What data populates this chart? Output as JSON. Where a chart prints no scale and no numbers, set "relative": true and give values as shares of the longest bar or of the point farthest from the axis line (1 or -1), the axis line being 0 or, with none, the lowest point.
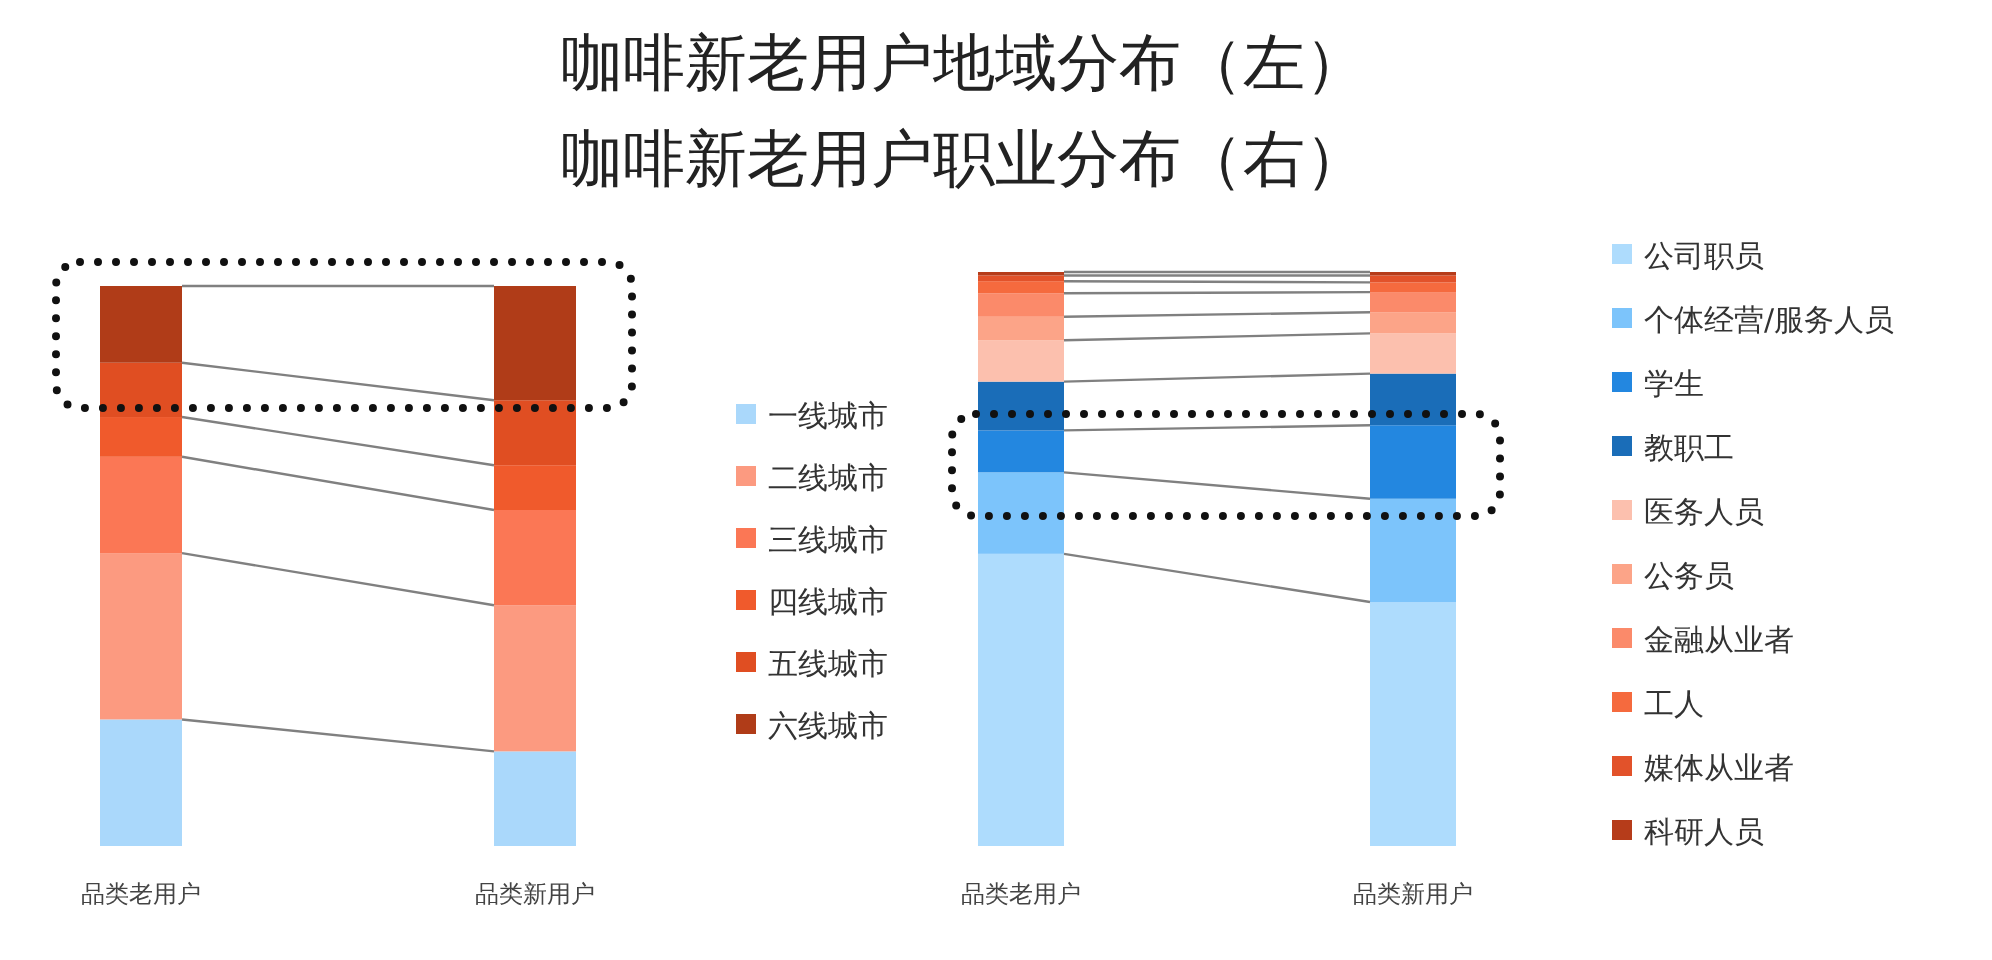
{
  "chart_data": [
    {
      "type": "bar",
      "title": "咖啡新老用户地域分布（左）",
      "categories": [
        "品类老用户",
        "品类新用户"
      ],
      "stacked": true,
      "relative": true,
      "legend": "right",
      "series": [
        {
          "name": "一线城市",
          "color": "#aad8fb",
          "values": [
            0.226,
            0.169
          ]
        },
        {
          "name": "二线城市",
          "color": "#fc9a80",
          "values": [
            0.297,
            0.261
          ]
        },
        {
          "name": "三线城市",
          "color": "#fb7755",
          "values": [
            0.172,
            0.17
          ]
        },
        {
          "name": "四线城市",
          "color": "#f05a2c",
          "values": [
            0.071,
            0.08
          ]
        },
        {
          "name": "五线城市",
          "color": "#e04e22",
          "values": [
            0.097,
            0.116
          ]
        },
        {
          "name": "六线城市",
          "color": "#b03c18",
          "values": [
            0.137,
            0.204
          ]
        }
      ]
    },
    {
      "type": "bar",
      "title": "咖啡新老用户职业分布（右）",
      "categories": [
        "品类老用户",
        "品类新用户"
      ],
      "stacked": true,
      "relative": true,
      "legend": "right",
      "series": [
        {
          "name": "公司职员",
          "color": "#aedcfd",
          "values": [
            0.509,
            0.425
          ]
        },
        {
          "name": "个体经营/服务人员",
          "color": "#7cc4fb",
          "values": [
            0.142,
            0.18
          ]
        },
        {
          "name": "学生",
          "color": "#2387e0",
          "values": [
            0.073,
            0.128
          ]
        },
        {
          "name": "教职工",
          "color": "#1a6db8",
          "values": [
            0.085,
            0.09
          ]
        },
        {
          "name": "医务人员",
          "color": "#fcc0ae",
          "values": [
            0.072,
            0.07
          ]
        },
        {
          "name": "公务员",
          "color": "#fca488",
          "values": [
            0.041,
            0.037
          ]
        },
        {
          "name": "金融从业者",
          "color": "#fb8a6a",
          "values": [
            0.041,
            0.035
          ]
        },
        {
          "name": "工人",
          "color": "#f56a3e",
          "values": [
            0.021,
            0.017
          ]
        },
        {
          "name": "媒体从业者",
          "color": "#e2522a",
          "values": [
            0.01,
            0.012
          ]
        },
        {
          "name": "科研人员",
          "color": "#b63c1a",
          "values": [
            0.006,
            0.006
          ]
        }
      ]
    }
  ]
}
